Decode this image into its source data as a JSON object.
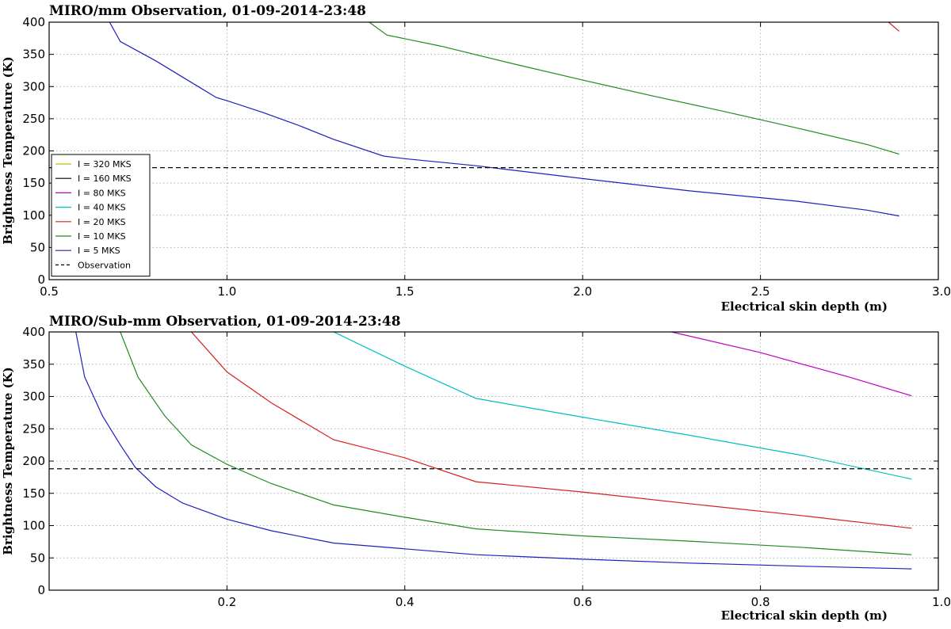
{
  "chart_data": [
    {
      "type": "line",
      "title": "MIRO/mm Observation, 01-09-2014-23:48",
      "xlabel": "Electrical skin depth (m)",
      "ylabel": "Brightness Temperature (K)",
      "xlim": [
        0.5,
        3.0
      ],
      "ylim": [
        0,
        400
      ],
      "xticks": [
        0.5,
        1.0,
        1.5,
        2.0,
        2.5,
        3.0
      ],
      "xtick_labels": [
        "0.5",
        "1.0",
        "1.5",
        "2.0",
        "2.5",
        "3.0"
      ],
      "yticks": [
        0,
        50,
        100,
        150,
        200,
        250,
        300,
        350,
        400
      ],
      "ytick_labels": [
        "0",
        "50",
        "100",
        "150",
        "200",
        "250",
        "300",
        "350",
        "400"
      ],
      "grid": true,
      "legend_position": "lower-left",
      "legend": [
        {
          "label": "I = 320 MKS",
          "color": "#bfbf00",
          "style": "solid"
        },
        {
          "label": "I = 160 MKS",
          "color": "#000000",
          "style": "solid"
        },
        {
          "label": "I = 80 MKS",
          "color": "#bf00bf",
          "style": "solid"
        },
        {
          "label": "I = 40 MKS",
          "color": "#00bfbf",
          "style": "solid"
        },
        {
          "label": "I = 20 MKS",
          "color": "#d62020",
          "style": "solid"
        },
        {
          "label": "I = 10 MKS",
          "color": "#228b22",
          "style": "solid"
        },
        {
          "label": "I = 5 MKS",
          "color": "#1f1fbf",
          "style": "solid"
        },
        {
          "label": "Observation",
          "color": "#000000",
          "style": "dashed"
        }
      ],
      "hlines": [
        {
          "y": 174,
          "color": "#000000",
          "style": "dashed"
        }
      ],
      "series": [
        {
          "color": "#1f1fbf",
          "x": [
            0.62,
            0.67,
            0.7,
            0.8,
            0.97,
            1.0,
            1.1,
            1.2,
            1.3,
            1.44,
            1.5,
            1.7,
            2.0,
            2.3,
            2.6,
            2.8,
            2.89
          ],
          "y": [
            410,
            400,
            370,
            340,
            283,
            278,
            260,
            240,
            218,
            192,
            188,
            177,
            157,
            138,
            122,
            108,
            99
          ]
        },
        {
          "color": "#228b22",
          "x": [
            1.36,
            1.4,
            1.45,
            1.6,
            1.8,
            2.0,
            2.2,
            2.4,
            2.6,
            2.8,
            2.89
          ],
          "y": [
            410,
            400,
            380,
            363,
            336,
            310,
            285,
            261,
            236,
            210,
            195
          ]
        },
        {
          "color": "#d62020",
          "x": [
            2.82,
            2.86,
            2.89
          ],
          "y": [
            408,
            400,
            386
          ]
        }
      ]
    },
    {
      "type": "line",
      "title": "MIRO/Sub-mm Observation, 01-09-2014-23:48",
      "xlabel": "Electrical skin depth (m)",
      "ylabel": "Brightness Temperature (K)",
      "xlim": [
        0.0,
        1.0
      ],
      "ylim": [
        0,
        400
      ],
      "xticks": [
        0.2,
        0.4,
        0.6,
        0.8,
        1.0
      ],
      "xtick_labels": [
        "0.2",
        "0.4",
        "0.6",
        "0.8",
        "1.0"
      ],
      "yticks": [
        0,
        50,
        100,
        150,
        200,
        250,
        300,
        350,
        400
      ],
      "ytick_labels": [
        "0",
        "50",
        "100",
        "150",
        "200",
        "250",
        "300",
        "350",
        "400"
      ],
      "grid": true,
      "hlines": [
        {
          "y": 188,
          "color": "#000000",
          "style": "dashed"
        }
      ],
      "series": [
        {
          "color": "#1f1fbf",
          "x": [
            0.025,
            0.03,
            0.04,
            0.05,
            0.06,
            0.08,
            0.097,
            0.12,
            0.15,
            0.2,
            0.25,
            0.32,
            0.4,
            0.48,
            0.6,
            0.72,
            0.85,
            0.97
          ],
          "y": [
            430,
            400,
            330,
            300,
            270,
            225,
            190,
            160,
            135,
            110,
            92,
            73,
            64,
            55,
            48,
            42,
            37,
            33
          ]
        },
        {
          "color": "#228b22",
          "x": [
            0.075,
            0.08,
            0.1,
            0.13,
            0.16,
            0.2,
            0.25,
            0.32,
            0.4,
            0.48,
            0.6,
            0.72,
            0.85,
            0.97
          ],
          "y": [
            410,
            400,
            330,
            270,
            225,
            195,
            165,
            132,
            113,
            95,
            84,
            76,
            66,
            55
          ]
        },
        {
          "color": "#d62020",
          "x": [
            0.15,
            0.16,
            0.2,
            0.25,
            0.32,
            0.4,
            0.48,
            0.6,
            0.72,
            0.85,
            0.97
          ],
          "y": [
            410,
            400,
            338,
            290,
            233,
            205,
            168,
            152,
            134,
            115,
            96
          ]
        },
        {
          "color": "#00bfbf",
          "x": [
            0.31,
            0.32,
            0.4,
            0.48,
            0.6,
            0.72,
            0.85,
            0.97
          ],
          "y": [
            410,
            400,
            347,
            297,
            268,
            240,
            208,
            172
          ]
        },
        {
          "color": "#bf00bf",
          "x": [
            0.68,
            0.7,
            0.8,
            0.9,
            0.97
          ],
          "y": [
            410,
            400,
            368,
            330,
            301
          ]
        }
      ]
    }
  ]
}
